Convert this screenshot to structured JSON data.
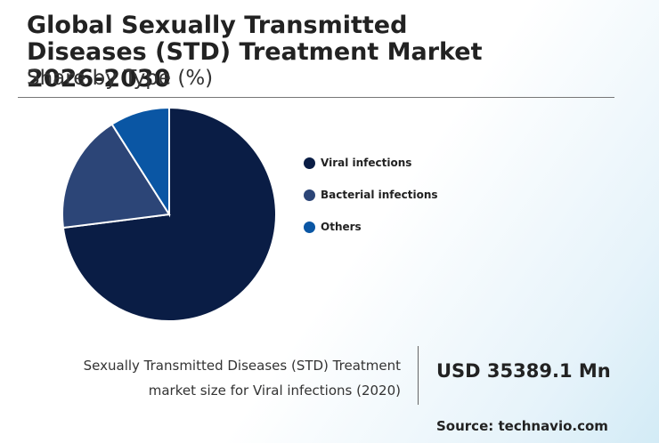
{
  "header": {
    "title": "Global Sexually Transmitted Diseases (STD) Treatment Market 2026-2030",
    "subtitle": "Share by Type (%)"
  },
  "chart_data": {
    "type": "pie",
    "categories": [
      "Viral infections",
      "Bacterial infections",
      "Others"
    ],
    "values": [
      73,
      18,
      9
    ],
    "colors": [
      "#0a1d45",
      "#2c4577",
      "#0a56a4"
    ],
    "legend_position": "right"
  },
  "stat": {
    "line1": "Sexually Transmitted Diseases (STD) Treatment",
    "line2": "market size for Viral infections (2020)",
    "value": "USD 35389.1 Mn"
  },
  "footer": {
    "source": "Source: technavio.com"
  }
}
